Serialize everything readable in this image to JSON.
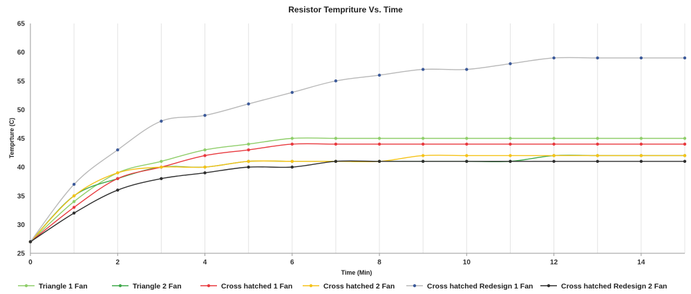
{
  "chart_data": {
    "type": "line",
    "title": "Resistor Tempriture  Vs. Time",
    "xlabel": "Time (Min)",
    "ylabel": "Temprture (C)",
    "xlim": [
      0,
      15
    ],
    "ylim": [
      25,
      65
    ],
    "xticks": [
      0,
      2,
      4,
      6,
      8,
      10,
      12,
      14
    ],
    "yticks": [
      25,
      30,
      35,
      40,
      45,
      50,
      55,
      60,
      65
    ],
    "grid": "vertical",
    "legend_position": "bottom",
    "smooth": true,
    "x": [
      0,
      1,
      2,
      3,
      4,
      5,
      6,
      7,
      8,
      9,
      10,
      11,
      12,
      13,
      14,
      15
    ],
    "series": [
      {
        "name": "Triangle 1 Fan",
        "color": "#8fce6a",
        "values": [
          27,
          34,
          39,
          41,
          43,
          44,
          45,
          45,
          45,
          45,
          45,
          45,
          45,
          45,
          45,
          45
        ]
      },
      {
        "name": "Triangle 2 Fan",
        "color": "#3fa84a",
        "values": [
          27,
          35,
          38,
          40,
          40,
          41,
          41,
          41,
          41,
          41,
          41,
          41,
          42,
          42,
          42,
          42
        ]
      },
      {
        "name": "Cross hatched  1 Fan",
        "color": "#e8393e",
        "values": [
          27,
          33,
          38,
          40,
          42,
          43,
          44,
          44,
          44,
          44,
          44,
          44,
          44,
          44,
          44,
          44
        ]
      },
      {
        "name": "Cross hatched 2 Fan",
        "color": "#f5c218",
        "values": [
          27,
          35,
          39,
          40,
          40,
          41,
          41,
          41,
          41,
          42,
          42,
          42,
          42,
          42,
          42,
          42
        ]
      },
      {
        "name": "Cross hatched Redesign 1 Fan",
        "color": "#b8b8b8",
        "marker": "#3c5a9a",
        "values": [
          27,
          37,
          43,
          48,
          49,
          51,
          53,
          55,
          56,
          57,
          57,
          58,
          59,
          59,
          59,
          59
        ]
      },
      {
        "name": "Cross hatched Redesign 2 Fan",
        "color": "#2e2e2e",
        "values": [
          27,
          32,
          36,
          38,
          39,
          40,
          40,
          41,
          41,
          41,
          41,
          41,
          41,
          41,
          41,
          41
        ]
      }
    ]
  }
}
